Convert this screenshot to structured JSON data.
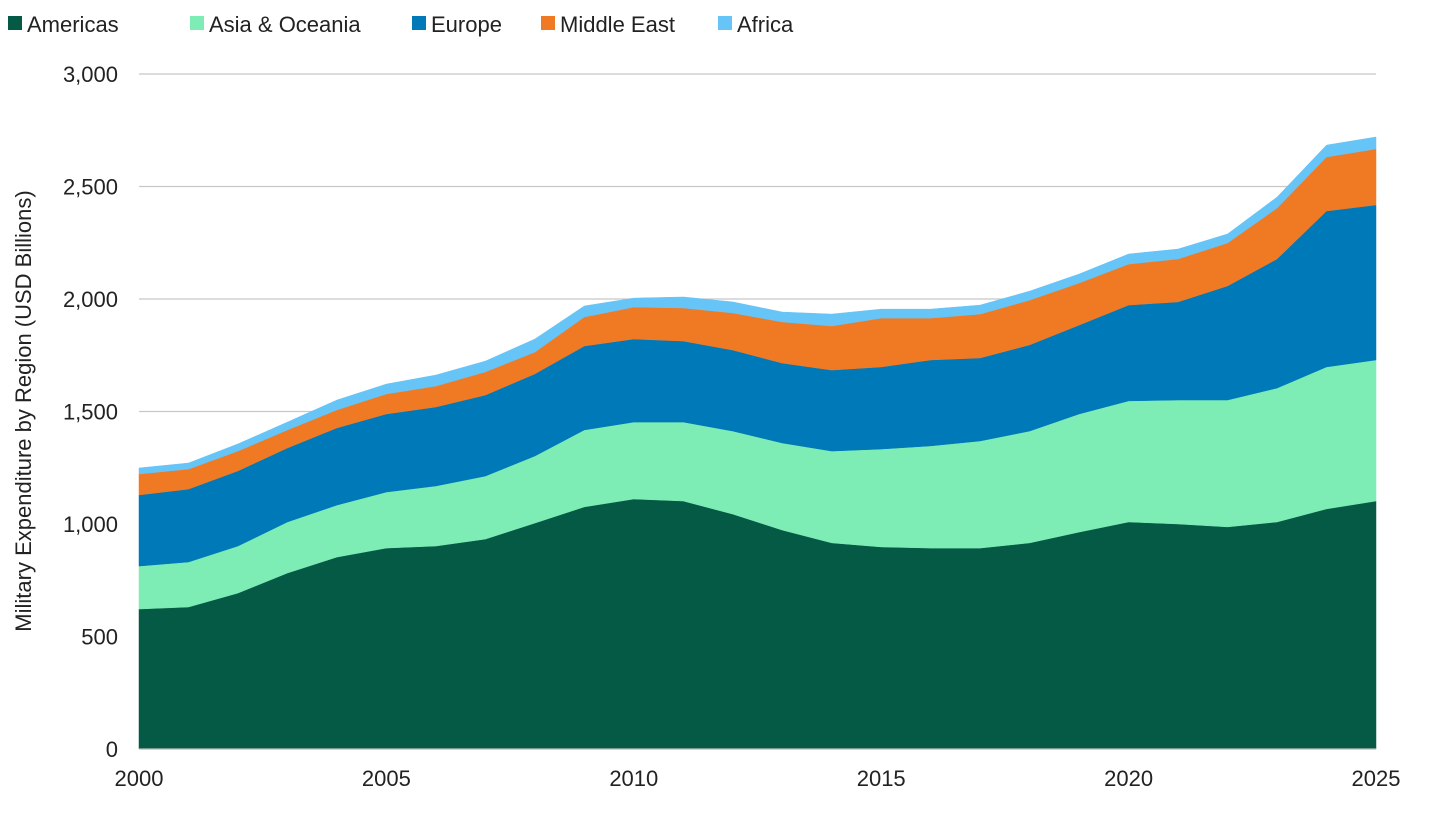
{
  "chart_data": {
    "type": "area",
    "stacked": true,
    "title": "",
    "xlabel": "",
    "ylabel": "Military Expenditure by Region (USD Billions)",
    "xlim": [
      2000,
      2025
    ],
    "ylim": [
      0,
      3000
    ],
    "x_ticks": [
      "2000",
      "2005",
      "2010",
      "2015",
      "2020",
      "2025"
    ],
    "y_ticks": [
      "0",
      "500",
      "1,000",
      "1,500",
      "2,000",
      "2,500",
      "3,000"
    ],
    "grid": "horizontal",
    "legend_position": "top-left",
    "x": [
      2000,
      2001,
      2002,
      2003,
      2004,
      2005,
      2006,
      2007,
      2008,
      2009,
      2010,
      2011,
      2012,
      2013,
      2014,
      2015,
      2016,
      2017,
      2018,
      2019,
      2020,
      2021,
      2022,
      2023,
      2024,
      2025
    ],
    "series": [
      {
        "name": "Americas",
        "color": "#055a45",
        "values": [
          622,
          631,
          693,
          782,
          853,
          893,
          902,
          933,
          1004,
          1076,
          1111,
          1102,
          1044,
          973,
          916,
          898,
          893,
          893,
          916,
          964,
          1009,
          1000,
          987,
          1009,
          1067,
          1102
        ]
      },
      {
        "name": "Asia & Oceania",
        "color": "#7eedb5",
        "values": [
          191,
          200,
          209,
          227,
          231,
          249,
          267,
          280,
          298,
          342,
          342,
          351,
          369,
          387,
          408,
          435,
          454,
          476,
          497,
          525,
          538,
          551,
          564,
          595,
          631,
          627
        ]
      },
      {
        "name": "Europe",
        "color": "#0079b8",
        "values": [
          316,
          324,
          334,
          329,
          343,
          347,
          351,
          360,
          365,
          373,
          369,
          360,
          360,
          355,
          360,
          365,
          382,
          369,
          383,
          395,
          426,
          436,
          507,
          574,
          693,
          689
        ]
      },
      {
        "name": "Middle East",
        "color": "#f07a24",
        "values": [
          93,
          89,
          88,
          80,
          80,
          89,
          93,
          103,
          97,
          129,
          142,
          147,
          165,
          183,
          196,
          217,
          186,
          195,
          199,
          187,
          182,
          191,
          191,
          226,
          240,
          249
        ]
      },
      {
        "name": "Africa",
        "color": "#66c4f6",
        "values": [
          27,
          27,
          32,
          35,
          44,
          44,
          49,
          48,
          58,
          49,
          40,
          49,
          49,
          44,
          53,
          40,
          40,
          40,
          40,
          40,
          45,
          44,
          40,
          49,
          53,
          53
        ]
      }
    ]
  }
}
